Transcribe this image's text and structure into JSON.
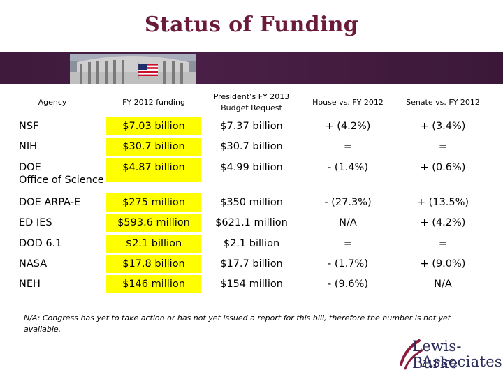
{
  "title": "Status of Funding",
  "banner": {
    "image": "capitol-dome-with-american-flag"
  },
  "colors": {
    "title": "#6b1b3a",
    "banner": "#4a1f47",
    "highlight": "#ffff00",
    "logo": "#2c2c5a"
  },
  "table": {
    "headers": {
      "agency": "Agency",
      "fy2012": "FY 2012 funding",
      "president_line1": "President’s FY 2013",
      "president_line2": "Budget Request",
      "house": "House vs. FY 2012",
      "senate": "Senate vs. FY 2012"
    },
    "rows": [
      {
        "agency_line1": "NSF",
        "agency_line2": "",
        "fy2012": "$7.03 billion",
        "president": "$7.37 billion",
        "house": "+ (4.2%)",
        "senate": "+ (3.4%)"
      },
      {
        "agency_line1": "NIH",
        "agency_line2": "",
        "fy2012": "$30.7 billion",
        "president": "$30.7 billion",
        "house": "=",
        "senate": "="
      },
      {
        "agency_line1": "DOE",
        "agency_line2": "Office of Science",
        "fy2012": "$4.87 billion",
        "president": "$4.99 billion",
        "house": "- (1.4%)",
        "senate": "+ (0.6%)"
      },
      {
        "agency_line1": "DOE ARPA-E",
        "agency_line2": "",
        "fy2012": "$275 million",
        "president": "$350 million",
        "house": "- (27.3%)",
        "senate": "+ (13.5%)"
      },
      {
        "agency_line1": "ED IES",
        "agency_line2": "",
        "fy2012": "$593.6 million",
        "president": "$621.1 million",
        "house": "N/A",
        "senate": "+ (4.2%)"
      },
      {
        "agency_line1": "DOD 6.1",
        "agency_line2": "",
        "fy2012": "$2.1 billion",
        "president": "$2.1 billion",
        "house": "=",
        "senate": "="
      },
      {
        "agency_line1": "NASA",
        "agency_line2": "",
        "fy2012": "$17.8 billion",
        "president": "$17.7 billion",
        "house": "- (1.7%)",
        "senate": "+ (9.0%)"
      },
      {
        "agency_line1": "NEH",
        "agency_line2": "",
        "fy2012": "$146 million",
        "president": "$154 million",
        "house": "- (9.6%)",
        "senate": "N/A"
      }
    ]
  },
  "footnote": {
    "term": "N/A",
    "text": ": Congress has yet to take action or has not yet issued a report for this bill, therefore the number is not yet available."
  },
  "logo": {
    "line1": "Lewis-Burke",
    "line2": "Associates",
    "icon": "lewis-burke-swoosh-logo"
  }
}
